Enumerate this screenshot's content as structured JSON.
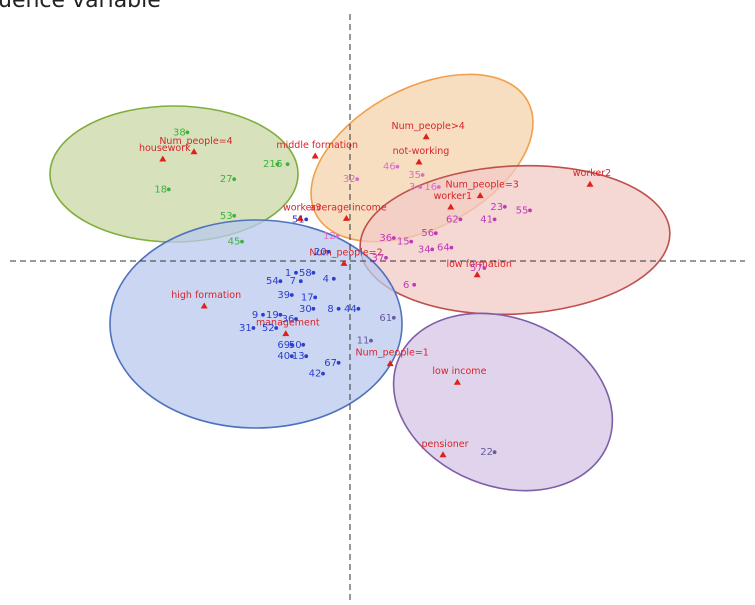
{
  "title": "uence variable",
  "chart_data": {
    "type": "scatter",
    "axes": {
      "vertical_axis_x": 0,
      "horizontal_axis_y": 0,
      "style": "dashed"
    },
    "clusters": [
      {
        "id": "green",
        "fill": "#c9d8a6",
        "stroke": "#7fae3b"
      },
      {
        "id": "orange",
        "fill": "#f6d3ac",
        "stroke": "#f0a04b"
      },
      {
        "id": "red",
        "fill": "#f2c9c6",
        "stroke": "#c0504d"
      },
      {
        "id": "blue",
        "fill": "#b9c9ee",
        "stroke": "#4f72bc"
      },
      {
        "id": "purple",
        "fill": "#d4c5e4",
        "stroke": "#7e5ea8"
      }
    ],
    "categories": [
      {
        "label": "housework",
        "x": -3.12,
        "y": 1.7
      },
      {
        "label": "Num_people=4",
        "x": -2.6,
        "y": 1.82
      },
      {
        "label": "middle formation",
        "x": -0.58,
        "y": 1.75
      },
      {
        "label": "Num_people>4",
        "x": 1.27,
        "y": 2.07
      },
      {
        "label": "not-working",
        "x": 1.15,
        "y": 1.65
      },
      {
        "label": "worker2",
        "x": 4.0,
        "y": 1.28
      },
      {
        "label": "Num_people=3",
        "x": 2.17,
        "y": 1.09
      },
      {
        "label": "worker1",
        "x": 1.68,
        "y": 0.9
      },
      {
        "label": "worker3",
        "x": -0.83,
        "y": 0.71
      },
      {
        "label": "average income",
        "x": -0.06,
        "y": 0.71
      },
      {
        "label": "Num_people=2",
        "x": -0.1,
        "y": -0.04
      },
      {
        "label": "management",
        "x": -1.07,
        "y": -1.21
      },
      {
        "label": "high formation",
        "x": -2.43,
        "y": -0.75
      },
      {
        "label": "low formation",
        "x": 2.12,
        "y": -0.23
      },
      {
        "label": "Num_people=1",
        "x": 0.67,
        "y": -1.71
      },
      {
        "label": "low income",
        "x": 1.79,
        "y": -2.02
      },
      {
        "label": "pensioner",
        "x": 1.55,
        "y": -3.23
      }
    ],
    "points": [
      {
        "label": "38",
        "x": -2.81,
        "y": 2.16,
        "cluster": "green"
      },
      {
        "label": "21",
        "x": -1.31,
        "y": 1.63,
        "cluster": "green"
      },
      {
        "label": "5",
        "x": -1.14,
        "y": 1.63,
        "cluster": "green"
      },
      {
        "label": "27",
        "x": -2.03,
        "y": 1.38,
        "cluster": "green"
      },
      {
        "label": "18",
        "x": -3.12,
        "y": 1.21,
        "cluster": "green"
      },
      {
        "label": "53",
        "x": -2.03,
        "y": 0.77,
        "cluster": "green"
      },
      {
        "label": "45",
        "x": -1.9,
        "y": 0.34,
        "cluster": "green"
      },
      {
        "label": "51",
        "x": -0.83,
        "y": 0.71,
        "cluster": "blue"
      },
      {
        "label": "46",
        "x": 0.69,
        "y": 1.59,
        "cluster": "orange"
      },
      {
        "label": "32",
        "x": 0.02,
        "y": 1.38,
        "cluster": "orange"
      },
      {
        "label": "35",
        "x": 1.11,
        "y": 1.45,
        "cluster": "orange"
      },
      {
        "label": "3",
        "x": 1.07,
        "y": 1.25,
        "cluster": "orange"
      },
      {
        "label": "16",
        "x": 1.38,
        "y": 1.25,
        "cluster": "orange"
      },
      {
        "label": "12",
        "x": -0.31,
        "y": 0.43,
        "cluster": "orange"
      },
      {
        "label": "23",
        "x": 2.48,
        "y": 0.92,
        "cluster": "red"
      },
      {
        "label": "55",
        "x": 2.9,
        "y": 0.86,
        "cluster": "red"
      },
      {
        "label": "41",
        "x": 2.31,
        "y": 0.71,
        "cluster": "red"
      },
      {
        "label": "62",
        "x": 1.74,
        "y": 0.71,
        "cluster": "red"
      },
      {
        "label": "56",
        "x": 1.33,
        "y": 0.48,
        "cluster": "red"
      },
      {
        "label": "36",
        "x": 0.63,
        "y": 0.4,
        "cluster": "red"
      },
      {
        "label": "15",
        "x": 0.92,
        "y": 0.34,
        "cluster": "red"
      },
      {
        "label": "34",
        "x": 1.27,
        "y": 0.21,
        "cluster": "red"
      },
      {
        "label": "64",
        "x": 1.59,
        "y": 0.24,
        "cluster": "red"
      },
      {
        "label": "37",
        "x": 0.5,
        "y": 0.07,
        "cluster": "red"
      },
      {
        "label": "57",
        "x": 2.14,
        "y": -0.1,
        "cluster": "red"
      },
      {
        "label": "6",
        "x": 0.97,
        "y": -0.38,
        "cluster": "red"
      },
      {
        "label": "20",
        "x": -0.46,
        "y": 0.17,
        "cluster": "blue"
      },
      {
        "label": "1",
        "x": -1.0,
        "y": -0.18,
        "cluster": "blue"
      },
      {
        "label": "58",
        "x": -0.71,
        "y": -0.18,
        "cluster": "blue"
      },
      {
        "label": "54",
        "x": -1.26,
        "y": -0.32,
        "cluster": "blue"
      },
      {
        "label": "7",
        "x": -0.92,
        "y": -0.32,
        "cluster": "blue"
      },
      {
        "label": "4",
        "x": -0.37,
        "y": -0.28,
        "cluster": "blue"
      },
      {
        "label": "39",
        "x": -1.07,
        "y": -0.55,
        "cluster": "blue"
      },
      {
        "label": "17",
        "x": -0.68,
        "y": -0.59,
        "cluster": "blue"
      },
      {
        "label": "30",
        "x": -0.71,
        "y": -0.78,
        "cluster": "blue"
      },
      {
        "label": "8",
        "x": -0.29,
        "y": -0.78,
        "cluster": "blue"
      },
      {
        "label": "44",
        "x": 0.04,
        "y": -0.78,
        "cluster": "blue"
      },
      {
        "label": "9",
        "x": -1.55,
        "y": -0.88,
        "cluster": "blue"
      },
      {
        "label": "19",
        "x": -1.26,
        "y": -0.88,
        "cluster": "blue"
      },
      {
        "label": "36",
        "x": -1.0,
        "y": -0.95,
        "cluster": "blue"
      },
      {
        "label": "31",
        "x": -1.71,
        "y": -1.1,
        "cluster": "blue"
      },
      {
        "label": "52",
        "x": -1.33,
        "y": -1.1,
        "cluster": "blue"
      },
      {
        "label": "69",
        "x": -1.07,
        "y": -1.38,
        "cluster": "blue"
      },
      {
        "label": "50",
        "x": -0.88,
        "y": -1.38,
        "cluster": "blue"
      },
      {
        "label": "40",
        "x": -1.07,
        "y": -1.57,
        "cluster": "blue"
      },
      {
        "label": "13",
        "x": -0.83,
        "y": -1.57,
        "cluster": "blue"
      },
      {
        "label": "67",
        "x": -0.29,
        "y": -1.68,
        "cluster": "blue"
      },
      {
        "label": "42",
        "x": -0.55,
        "y": -1.86,
        "cluster": "blue"
      },
      {
        "label": "61",
        "x": 0.63,
        "y": -0.93,
        "cluster": "purple"
      },
      {
        "label": "11",
        "x": 0.25,
        "y": -1.31,
        "cluster": "purple"
      },
      {
        "label": "22",
        "x": 2.31,
        "y": -3.17,
        "cluster": "purple"
      }
    ]
  }
}
